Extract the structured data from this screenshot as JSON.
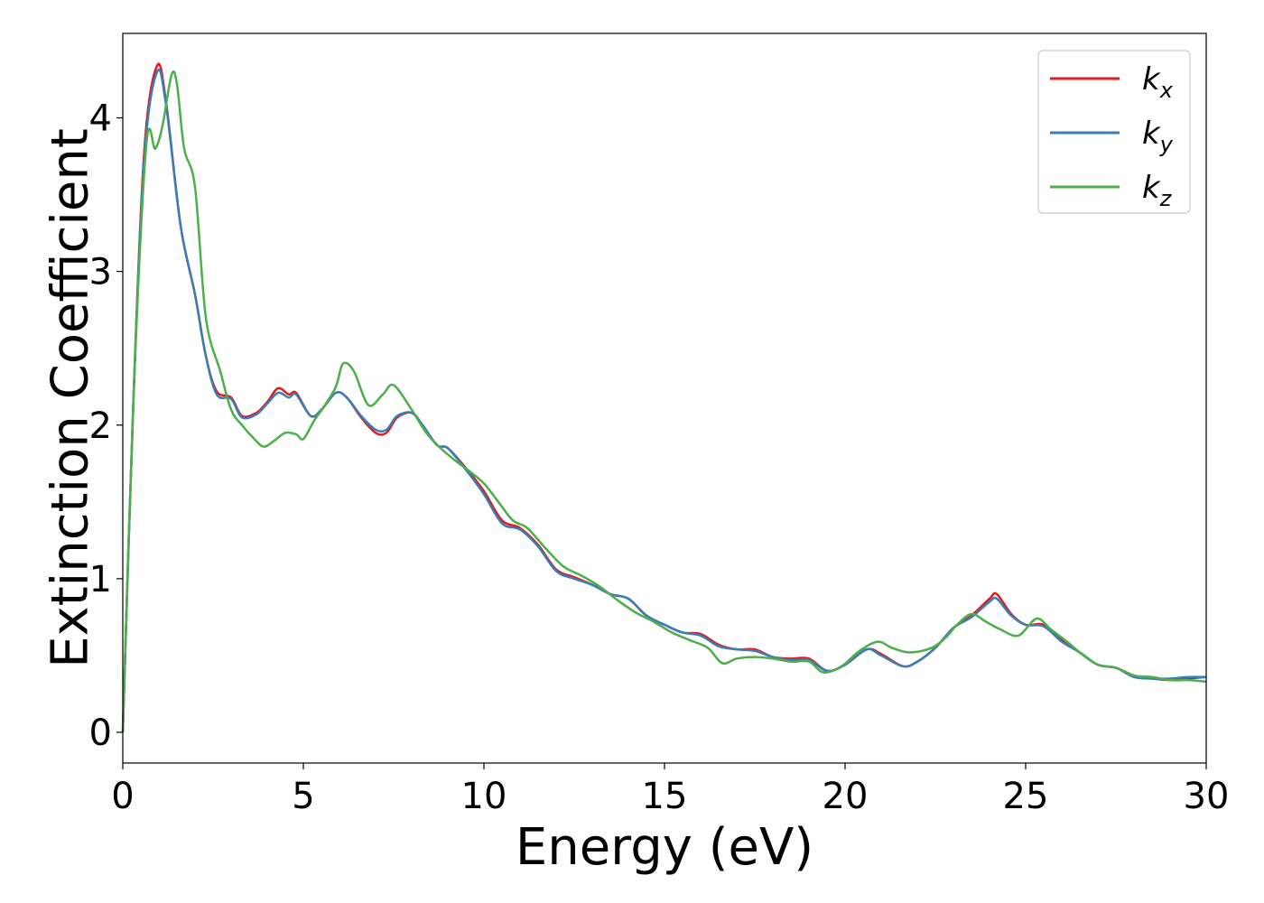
{
  "chart_data": {
    "type": "line",
    "title": "",
    "xlabel": "Energy (eV)",
    "ylabel": "Extinction Coefficient",
    "xlim": [
      0,
      30
    ],
    "ylim": [
      -0.2,
      4.55
    ],
    "xticks": [
      0,
      5,
      10,
      15,
      20,
      25,
      30
    ],
    "yticks": [
      0,
      1,
      2,
      3,
      4
    ],
    "grid": false,
    "legend_position": "top-right",
    "series": [
      {
        "name": "k",
        "subscript": "x",
        "color": "#e41a1c",
        "points": [
          [
            0,
            0
          ],
          [
            0.3,
            2.2
          ],
          [
            0.6,
            3.8
          ],
          [
            0.95,
            4.34
          ],
          [
            1.2,
            4.1
          ],
          [
            1.6,
            3.3
          ],
          [
            2.0,
            2.85
          ],
          [
            2.3,
            2.45
          ],
          [
            2.6,
            2.22
          ],
          [
            3.0,
            2.18
          ],
          [
            3.3,
            2.06
          ],
          [
            3.7,
            2.08
          ],
          [
            4.0,
            2.15
          ],
          [
            4.3,
            2.24
          ],
          [
            4.6,
            2.2
          ],
          [
            4.8,
            2.21
          ],
          [
            5.2,
            2.06
          ],
          [
            5.5,
            2.1
          ],
          [
            5.9,
            2.21
          ],
          [
            6.2,
            2.18
          ],
          [
            6.6,
            2.05
          ],
          [
            7.0,
            1.95
          ],
          [
            7.3,
            1.95
          ],
          [
            7.6,
            2.05
          ],
          [
            8.0,
            2.08
          ],
          [
            8.3,
            2.0
          ],
          [
            8.7,
            1.87
          ],
          [
            9.0,
            1.85
          ],
          [
            9.5,
            1.72
          ],
          [
            10.0,
            1.57
          ],
          [
            10.5,
            1.38
          ],
          [
            11.0,
            1.33
          ],
          [
            11.5,
            1.22
          ],
          [
            12.0,
            1.06
          ],
          [
            12.5,
            1.01
          ],
          [
            13.0,
            0.96
          ],
          [
            13.5,
            0.9
          ],
          [
            14.0,
            0.87
          ],
          [
            14.5,
            0.76
          ],
          [
            15.0,
            0.7
          ],
          [
            15.5,
            0.65
          ],
          [
            16.0,
            0.64
          ],
          [
            16.5,
            0.57
          ],
          [
            17.0,
            0.54
          ],
          [
            17.5,
            0.54
          ],
          [
            18.0,
            0.49
          ],
          [
            18.5,
            0.48
          ],
          [
            19.0,
            0.48
          ],
          [
            19.5,
            0.4
          ],
          [
            20.0,
            0.44
          ],
          [
            20.6,
            0.54
          ],
          [
            21.0,
            0.51
          ],
          [
            21.6,
            0.43
          ],
          [
            22.0,
            0.46
          ],
          [
            22.5,
            0.55
          ],
          [
            23.0,
            0.68
          ],
          [
            23.5,
            0.76
          ],
          [
            24.0,
            0.87
          ],
          [
            24.2,
            0.9
          ],
          [
            24.6,
            0.77
          ],
          [
            25.0,
            0.7
          ],
          [
            25.5,
            0.7
          ],
          [
            26.0,
            0.6
          ],
          [
            26.5,
            0.52
          ],
          [
            27.0,
            0.44
          ],
          [
            27.5,
            0.42
          ],
          [
            28.0,
            0.37
          ],
          [
            28.5,
            0.35
          ],
          [
            29.0,
            0.34
          ],
          [
            29.5,
            0.35
          ],
          [
            30.0,
            0.36
          ]
        ]
      },
      {
        "name": "k",
        "subscript": "y",
        "color": "#377eb8",
        "points": [
          [
            0,
            0
          ],
          [
            0.3,
            2.2
          ],
          [
            0.6,
            3.75
          ],
          [
            0.95,
            4.3
          ],
          [
            1.2,
            4.08
          ],
          [
            1.6,
            3.3
          ],
          [
            2.0,
            2.85
          ],
          [
            2.3,
            2.45
          ],
          [
            2.6,
            2.2
          ],
          [
            3.0,
            2.17
          ],
          [
            3.3,
            2.05
          ],
          [
            3.7,
            2.07
          ],
          [
            4.0,
            2.14
          ],
          [
            4.3,
            2.21
          ],
          [
            4.6,
            2.18
          ],
          [
            4.8,
            2.2
          ],
          [
            5.2,
            2.06
          ],
          [
            5.5,
            2.1
          ],
          [
            5.9,
            2.21
          ],
          [
            6.2,
            2.18
          ],
          [
            6.6,
            2.06
          ],
          [
            7.0,
            1.97
          ],
          [
            7.3,
            1.97
          ],
          [
            7.6,
            2.06
          ],
          [
            8.0,
            2.08
          ],
          [
            8.3,
            2.0
          ],
          [
            8.7,
            1.87
          ],
          [
            9.0,
            1.85
          ],
          [
            9.5,
            1.71
          ],
          [
            10.0,
            1.55
          ],
          [
            10.5,
            1.36
          ],
          [
            11.0,
            1.32
          ],
          [
            11.5,
            1.21
          ],
          [
            12.0,
            1.05
          ],
          [
            12.5,
            1.0
          ],
          [
            13.0,
            0.96
          ],
          [
            13.5,
            0.9
          ],
          [
            14.0,
            0.87
          ],
          [
            14.5,
            0.76
          ],
          [
            15.0,
            0.7
          ],
          [
            15.5,
            0.65
          ],
          [
            16.0,
            0.63
          ],
          [
            16.5,
            0.56
          ],
          [
            17.0,
            0.54
          ],
          [
            17.5,
            0.53
          ],
          [
            18.0,
            0.49
          ],
          [
            18.5,
            0.47
          ],
          [
            19.0,
            0.47
          ],
          [
            19.5,
            0.4
          ],
          [
            20.0,
            0.44
          ],
          [
            20.6,
            0.54
          ],
          [
            21.0,
            0.5
          ],
          [
            21.6,
            0.43
          ],
          [
            22.0,
            0.46
          ],
          [
            22.5,
            0.55
          ],
          [
            23.0,
            0.68
          ],
          [
            23.5,
            0.75
          ],
          [
            24.0,
            0.85
          ],
          [
            24.2,
            0.87
          ],
          [
            24.6,
            0.76
          ],
          [
            25.0,
            0.7
          ],
          [
            25.5,
            0.69
          ],
          [
            26.0,
            0.59
          ],
          [
            26.5,
            0.52
          ],
          [
            27.0,
            0.44
          ],
          [
            27.5,
            0.42
          ],
          [
            28.0,
            0.36
          ],
          [
            28.5,
            0.35
          ],
          [
            29.0,
            0.35
          ],
          [
            29.5,
            0.36
          ],
          [
            30.0,
            0.36
          ]
        ]
      },
      {
        "name": "k",
        "subscript": "z",
        "color": "#4daf4a",
        "points": [
          [
            0,
            0
          ],
          [
            0.3,
            2.2
          ],
          [
            0.65,
            3.82
          ],
          [
            0.9,
            3.8
          ],
          [
            1.1,
            3.95
          ],
          [
            1.35,
            4.28
          ],
          [
            1.5,
            4.22
          ],
          [
            1.7,
            3.8
          ],
          [
            2.0,
            3.55
          ],
          [
            2.3,
            2.7
          ],
          [
            2.7,
            2.35
          ],
          [
            3.0,
            2.1
          ],
          [
            3.3,
            2.0
          ],
          [
            3.6,
            1.92
          ],
          [
            3.9,
            1.86
          ],
          [
            4.2,
            1.9
          ],
          [
            4.5,
            1.95
          ],
          [
            4.8,
            1.94
          ],
          [
            5.0,
            1.91
          ],
          [
            5.3,
            2.03
          ],
          [
            5.6,
            2.13
          ],
          [
            5.9,
            2.25
          ],
          [
            6.1,
            2.4
          ],
          [
            6.4,
            2.35
          ],
          [
            6.8,
            2.13
          ],
          [
            7.2,
            2.2
          ],
          [
            7.5,
            2.26
          ],
          [
            8.0,
            2.1
          ],
          [
            8.4,
            1.95
          ],
          [
            8.8,
            1.85
          ],
          [
            9.2,
            1.77
          ],
          [
            9.6,
            1.7
          ],
          [
            10.0,
            1.62
          ],
          [
            10.4,
            1.5
          ],
          [
            10.8,
            1.38
          ],
          [
            11.2,
            1.33
          ],
          [
            11.7,
            1.2
          ],
          [
            12.2,
            1.08
          ],
          [
            12.7,
            1.02
          ],
          [
            13.2,
            0.95
          ],
          [
            13.7,
            0.86
          ],
          [
            14.2,
            0.78
          ],
          [
            14.7,
            0.72
          ],
          [
            15.2,
            0.65
          ],
          [
            15.7,
            0.6
          ],
          [
            16.2,
            0.55
          ],
          [
            16.6,
            0.45
          ],
          [
            17.0,
            0.48
          ],
          [
            17.5,
            0.49
          ],
          [
            18.0,
            0.48
          ],
          [
            18.5,
            0.46
          ],
          [
            19.0,
            0.46
          ],
          [
            19.4,
            0.39
          ],
          [
            19.9,
            0.43
          ],
          [
            20.4,
            0.53
          ],
          [
            20.9,
            0.59
          ],
          [
            21.3,
            0.55
          ],
          [
            21.8,
            0.52
          ],
          [
            22.4,
            0.55
          ],
          [
            22.8,
            0.62
          ],
          [
            23.1,
            0.7
          ],
          [
            23.5,
            0.77
          ],
          [
            23.9,
            0.72
          ],
          [
            24.3,
            0.67
          ],
          [
            24.8,
            0.63
          ],
          [
            25.3,
            0.74
          ],
          [
            25.7,
            0.67
          ],
          [
            26.2,
            0.58
          ],
          [
            26.6,
            0.5
          ],
          [
            27.0,
            0.44
          ],
          [
            27.5,
            0.42
          ],
          [
            28.0,
            0.37
          ],
          [
            28.5,
            0.36
          ],
          [
            29.0,
            0.34
          ],
          [
            29.5,
            0.34
          ],
          [
            30.0,
            0.33
          ]
        ]
      }
    ]
  }
}
